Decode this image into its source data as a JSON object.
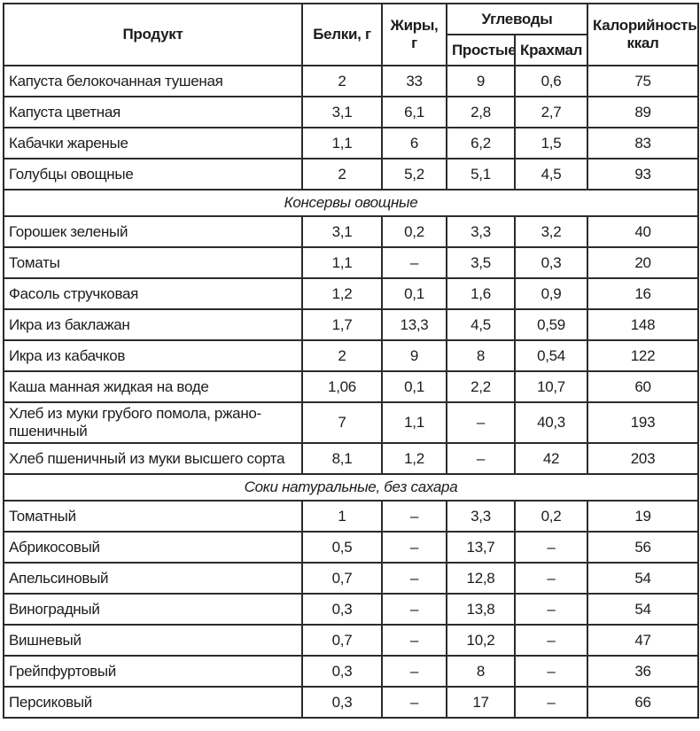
{
  "table": {
    "columns": {
      "product": "Продукт",
      "protein": "Белки, г",
      "fat": "Жиры, г",
      "carbs": "Углеводы",
      "simple": "Простые",
      "starch": "Крахмал",
      "calories": "Калорийность, ккал"
    },
    "rows": [
      {
        "product": "Капуста белокочанная тушеная",
        "protein": "2",
        "fat": "33",
        "simple": "9",
        "starch": "0,6",
        "kcal": "75"
      },
      {
        "product": "Капуста цветная",
        "protein": "3,1",
        "fat": "6,1",
        "simple": "2,8",
        "starch": "2,7",
        "kcal": "89"
      },
      {
        "product": "Кабачки жареные",
        "protein": "1,1",
        "fat": "6",
        "simple": "6,2",
        "starch": "1,5",
        "kcal": "83"
      },
      {
        "product": "Голубцы овощные",
        "protein": "2",
        "fat": "5,2",
        "simple": "5,1",
        "starch": "4,5",
        "kcal": "93"
      },
      {
        "section": "Консервы овощные"
      },
      {
        "product": "Горошек зеленый",
        "protein": "3,1",
        "fat": "0,2",
        "simple": "3,3",
        "starch": "3,2",
        "kcal": "40"
      },
      {
        "product": "Томаты",
        "protein": "1,1",
        "fat": "–",
        "simple": "3,5",
        "starch": "0,3",
        "kcal": "20"
      },
      {
        "product": "Фасоль стручковая",
        "protein": "1,2",
        "fat": "0,1",
        "simple": "1,6",
        "starch": "0,9",
        "kcal": "16"
      },
      {
        "product": "Икра из баклажан",
        "protein": "1,7",
        "fat": "13,3",
        "simple": "4,5",
        "starch": "0,59",
        "kcal": "148"
      },
      {
        "product": "Икра из кабачков",
        "protein": "2",
        "fat": "9",
        "simple": "8",
        "starch": "0,54",
        "kcal": "122"
      },
      {
        "product": "Каша манная жидкая на воде",
        "protein": "1,06",
        "fat": "0,1",
        "simple": "2,2",
        "starch": "10,7",
        "kcal": "60"
      },
      {
        "product": "Хлеб из муки грубого помола, ржано-пшеничный",
        "protein": "7",
        "fat": "1,1",
        "simple": "–",
        "starch": "40,3",
        "kcal": "193"
      },
      {
        "product": "Хлеб пшеничный из муки высшего сорта",
        "protein": "8,1",
        "fat": "1,2",
        "simple": "–",
        "starch": "42",
        "kcal": "203"
      },
      {
        "section": "Соки натуральные, без сахара"
      },
      {
        "product": "Томатный",
        "protein": "1",
        "fat": "–",
        "simple": "3,3",
        "starch": "0,2",
        "kcal": "19"
      },
      {
        "product": "Абрикосовый",
        "protein": "0,5",
        "fat": "–",
        "simple": "13,7",
        "starch": "–",
        "kcal": "56"
      },
      {
        "product": "Апельсиновый",
        "protein": "0,7",
        "fat": "–",
        "simple": "12,8",
        "starch": "–",
        "kcal": "54"
      },
      {
        "product": "Виноградный",
        "protein": "0,3",
        "fat": "–",
        "simple": "13,8",
        "starch": "–",
        "kcal": "54"
      },
      {
        "product": "Вишневый",
        "protein": "0,7",
        "fat": "–",
        "simple": "10,2",
        "starch": "–",
        "kcal": "47"
      },
      {
        "product": "Грейпфуртовый",
        "protein": "0,3",
        "fat": "–",
        "simple": "8",
        "starch": "–",
        "kcal": "36"
      },
      {
        "product": "Персиковый",
        "protein": "0,3",
        "fat": "–",
        "simple": "17",
        "starch": "–",
        "kcal": "66"
      }
    ]
  }
}
